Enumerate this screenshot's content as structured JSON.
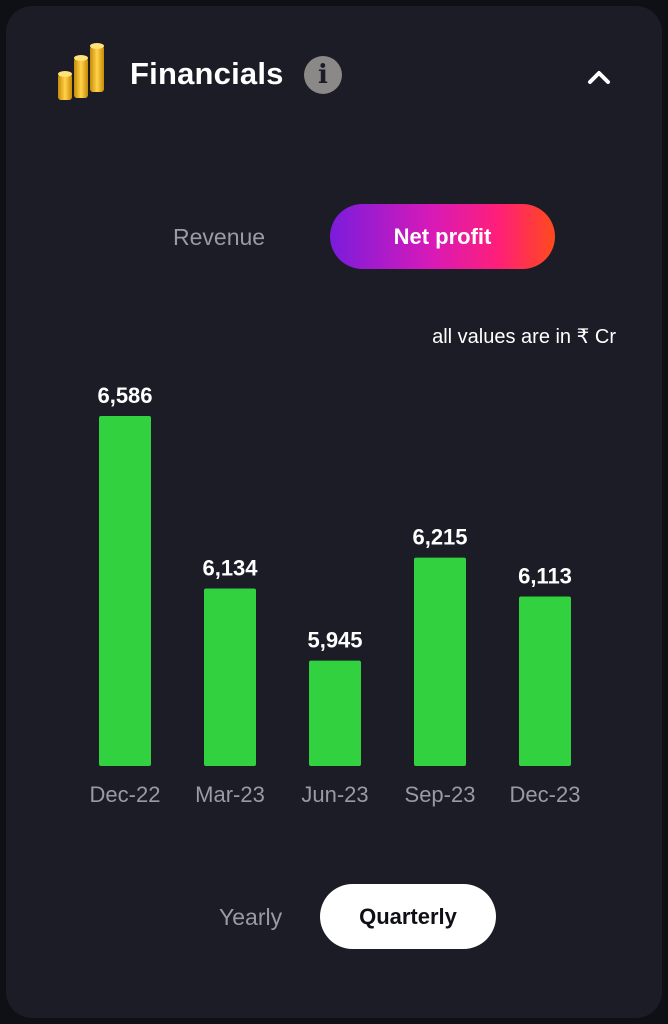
{
  "header": {
    "title": "Financials",
    "info_icon": "info-icon",
    "collapse_icon": "chevron-up-icon",
    "logo_icon": "gold-coins-icon"
  },
  "metric_toggle": {
    "options": [
      "Revenue",
      "Net profit"
    ],
    "selected": "Net profit"
  },
  "unit_note": "all values are in ₹ Cr",
  "period_toggle": {
    "options": [
      "Yearly",
      "Quarterly"
    ],
    "selected": "Quarterly"
  },
  "colors": {
    "bar": "#32d140",
    "card_bg": "#1b1c26",
    "label_text": "#9a9aa5"
  },
  "chart_data": {
    "type": "bar",
    "categories": [
      "Dec-22",
      "Mar-23",
      "Jun-23",
      "Sep-23",
      "Dec-23"
    ],
    "values": [
      6586,
      6134,
      5945,
      6215,
      6113
    ],
    "value_labels": [
      "6,586",
      "6,134",
      "5,945",
      "6,215",
      "6,113"
    ],
    "title": "",
    "xlabel": "",
    "ylabel": "",
    "grid": false,
    "legend": "none"
  }
}
